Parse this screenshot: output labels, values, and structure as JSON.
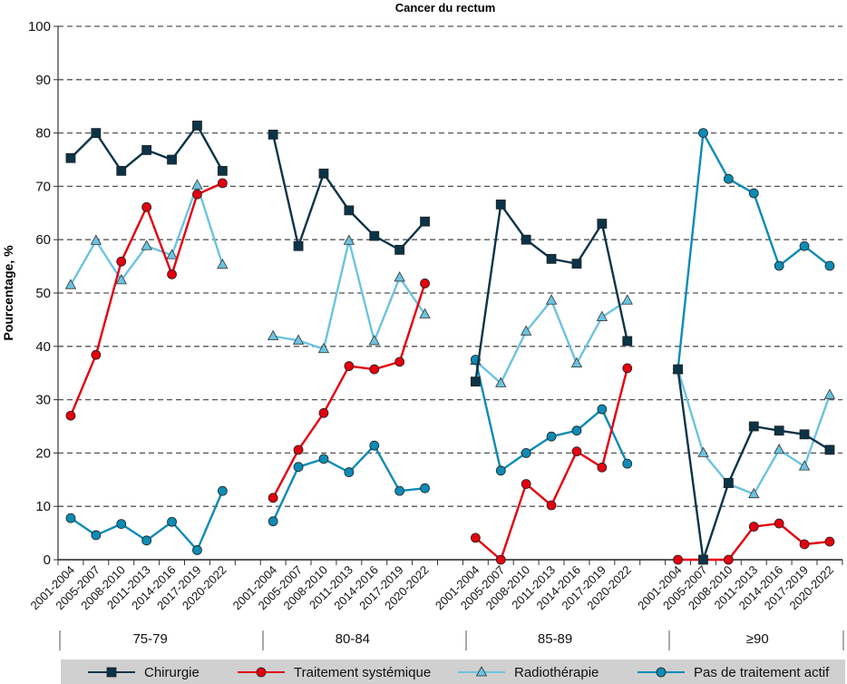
{
  "chart_data": {
    "type": "line",
    "title": "Cancer du rectum",
    "xlabel": "",
    "ylabel": "Pourcentage, %",
    "ylim": [
      0,
      100
    ],
    "yticks": [
      0,
      10,
      20,
      30,
      40,
      50,
      60,
      70,
      80,
      90,
      100
    ],
    "grid": true,
    "legend_position": "bottom",
    "periods": [
      "2001-2004",
      "2005-2007",
      "2008-2010",
      "2011-2013",
      "2014-2016",
      "2017-2019",
      "2020-2022"
    ],
    "groups": [
      "75-79",
      "80-84",
      "85-89",
      "≥90"
    ],
    "series": [
      {
        "name": "Chirurgie",
        "color": "#0b3448",
        "marker": "square",
        "values": [
          [
            75.3,
            80.0,
            72.9,
            76.8,
            75.0,
            81.4,
            72.9
          ],
          [
            79.7,
            58.8,
            72.4,
            65.5,
            60.7,
            58.1,
            63.4
          ],
          [
            33.4,
            66.6,
            60.0,
            56.4,
            55.5,
            63.0,
            41.0
          ],
          [
            35.7,
            0.0,
            14.4,
            25.0,
            24.2,
            23.5,
            20.6
          ]
        ]
      },
      {
        "name": "Traitement systémique",
        "color": "#e3000f",
        "marker": "circle",
        "values": [
          [
            27.0,
            38.4,
            55.9,
            66.1,
            53.5,
            68.5,
            70.6
          ],
          [
            11.6,
            20.6,
            27.5,
            36.3,
            35.7,
            37.1,
            51.8
          ],
          [
            4.1,
            0.0,
            14.2,
            10.2,
            20.3,
            17.3,
            35.9
          ],
          [
            0.0,
            0.0,
            0.0,
            6.2,
            6.8,
            2.9,
            3.4
          ]
        ]
      },
      {
        "name": "Radiothérapie",
        "color": "#6cc3e0",
        "marker": "triangle",
        "values": [
          [
            51.5,
            59.8,
            52.4,
            58.8,
            57.1,
            70.2,
            55.3
          ],
          [
            41.9,
            41.1,
            39.5,
            59.8,
            41.0,
            52.9,
            46.0
          ],
          [
            37.3,
            33.1,
            42.8,
            48.6,
            36.8,
            45.5,
            48.6
          ],
          [
            35.7,
            20.0,
            14.2,
            12.3,
            20.6,
            17.5,
            30.9
          ]
        ]
      },
      {
        "name": "Pas de traitement actif",
        "color": "#0d8bb5",
        "marker": "circle",
        "values": [
          [
            7.8,
            4.6,
            6.7,
            3.6,
            7.1,
            1.8,
            12.9
          ],
          [
            7.2,
            17.4,
            18.9,
            16.4,
            21.4,
            12.9,
            13.4
          ],
          [
            37.5,
            16.7,
            20.0,
            23.1,
            24.2,
            28.2,
            18.0
          ],
          [
            35.7,
            80.0,
            71.4,
            68.7,
            55.1,
            58.8,
            55.1
          ]
        ]
      }
    ]
  }
}
